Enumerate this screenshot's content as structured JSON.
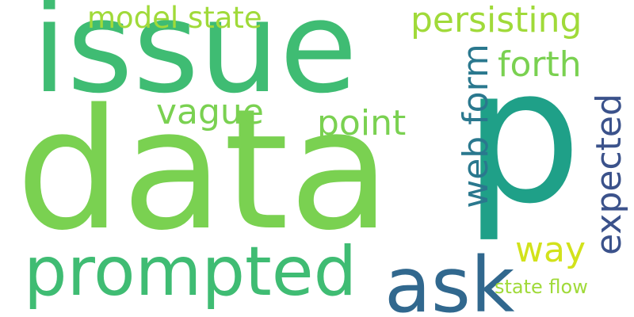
{
  "words": [
    {
      "id": "data",
      "text": "data",
      "color": "#7ad151"
    },
    {
      "id": "issue",
      "text": "issue",
      "color": "#3fbc73"
    },
    {
      "id": "p",
      "text": "p",
      "color": "#1fa088"
    },
    {
      "id": "prompted",
      "text": "prompted",
      "color": "#3fbc73"
    },
    {
      "id": "ask",
      "text": "ask",
      "color": "#31688e"
    },
    {
      "id": "model-state",
      "text": "model state",
      "color": "#a0da39"
    },
    {
      "id": "persisting",
      "text": "persisting",
      "color": "#a0da39"
    },
    {
      "id": "forth",
      "text": "forth",
      "color": "#7ad151"
    },
    {
      "id": "vague",
      "text": "vague",
      "color": "#7ad151"
    },
    {
      "id": "point",
      "text": "point",
      "color": "#7ad151"
    },
    {
      "id": "web-form",
      "text": "web form",
      "color": "#2a788e"
    },
    {
      "id": "expected",
      "text": "expected",
      "color": "#3b528b"
    },
    {
      "id": "way",
      "text": "way",
      "color": "#d2e21b"
    },
    {
      "id": "state-flow",
      "text": "state flow",
      "color": "#a0da39"
    }
  ]
}
